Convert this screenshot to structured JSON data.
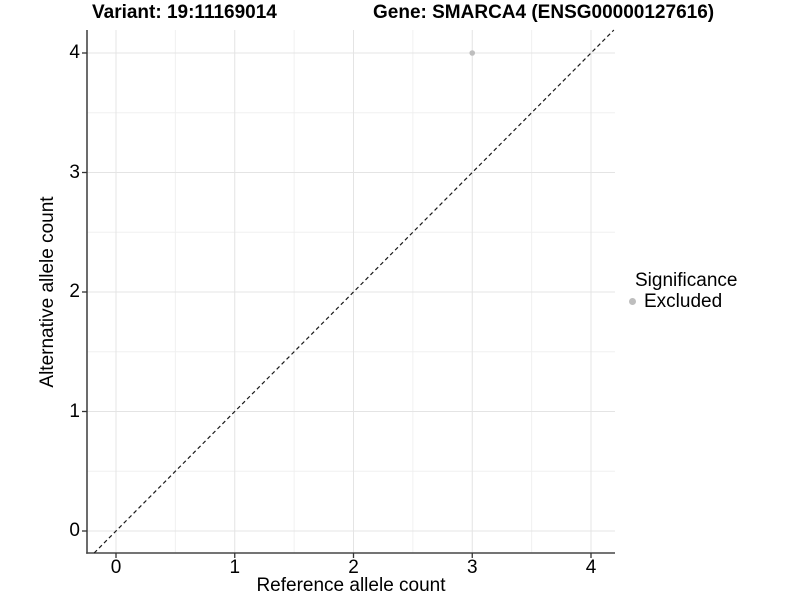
{
  "titles": {
    "variant": "Variant: 19:11169014",
    "gene": "Gene: SMARCA4 (ENSG00000127616)"
  },
  "axes": {
    "x_label": "Reference allele count",
    "y_label": "Alternative allele count"
  },
  "legend": {
    "title": "Significance",
    "entries": [
      {
        "label": "Excluded",
        "color": "#bebebe"
      }
    ]
  },
  "chart_data": {
    "type": "scatter",
    "title": "Variant: 19:11169014  /  Gene: SMARCA4 (ENSG00000127616)",
    "xlabel": "Reference allele count",
    "ylabel": "Alternative allele count",
    "xlim": [
      -0.25,
      4.2
    ],
    "ylim": [
      -0.18,
      4.19
    ],
    "x_ticks": [
      0,
      1,
      2,
      3,
      4
    ],
    "y_ticks": [
      0,
      1,
      2,
      3,
      4
    ],
    "x_minor_ticks": [
      0.5,
      1.5,
      2.5,
      3.5
    ],
    "y_minor_ticks": [
      0.5,
      1.5,
      2.5,
      3.5
    ],
    "grid": "major and minor gridlines on white background",
    "legend_position": "right",
    "series": [
      {
        "name": "Excluded",
        "color": "#bebebe",
        "points": [
          {
            "x": 3,
            "y": 4
          }
        ]
      }
    ],
    "identity_line": {
      "style": "dashed",
      "slope": 1,
      "intercept": 0,
      "color": "#1a1a1a"
    },
    "colors": {
      "background": "#ffffff",
      "grid_major": "#e4e4e4",
      "grid_minor": "#f0f0f0",
      "axis_line": "#474747",
      "tick_mark": "#333333",
      "point": "#bebebe",
      "text": "#000000"
    }
  }
}
